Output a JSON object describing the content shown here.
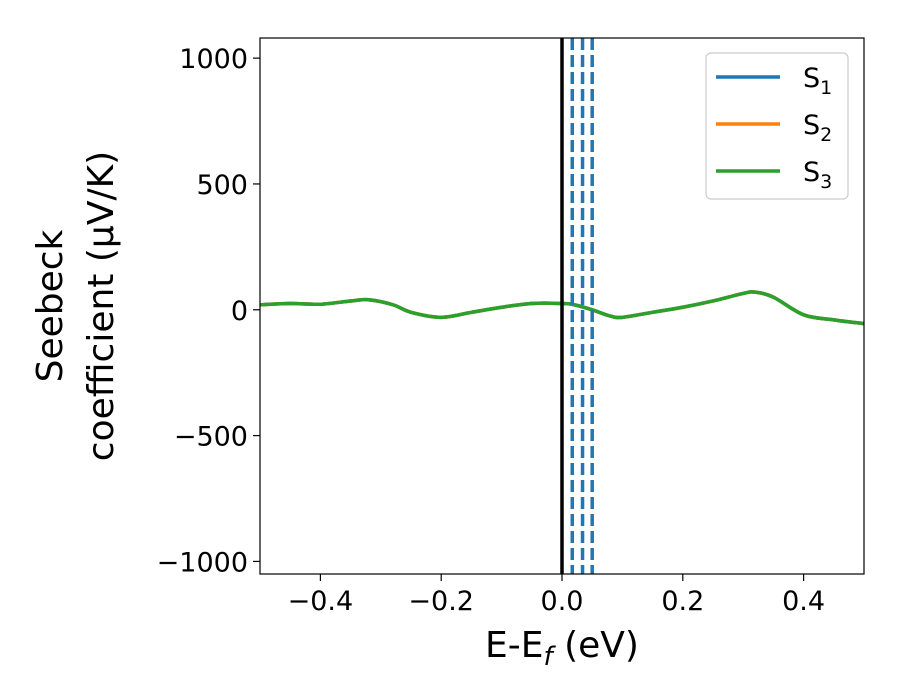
{
  "chart_data": {
    "type": "line",
    "xlabel": "E-E_f (eV)",
    "xlabel_parts": {
      "main": "E-E",
      "sub": "f",
      "rest": " (eV)"
    },
    "ylabel": [
      "Seebeck",
      "coefficient  (μV/K)"
    ],
    "xlim": [
      -0.5,
      0.5
    ],
    "ylim": [
      -1050,
      1080
    ],
    "x_ticks": [
      -0.4,
      -0.2,
      0.0,
      0.2,
      0.4
    ],
    "x_tick_labels": [
      "−0.4",
      "−0.2",
      "0.0",
      "0.2",
      "0.4"
    ],
    "y_ticks": [
      -1000,
      -500,
      0,
      500,
      1000
    ],
    "y_tick_labels": [
      "−1000",
      "−500",
      "0",
      "500",
      "1000"
    ],
    "grid": false,
    "legend_position": "top-right",
    "series": [
      {
        "name": "S1",
        "label_main": "S",
        "label_sub": "1",
        "color": "#1f77b4",
        "x": [
          -0.5,
          -0.45,
          -0.4,
          -0.35,
          -0.32,
          -0.28,
          -0.25,
          -0.2,
          -0.15,
          -0.1,
          -0.05,
          0.0,
          0.02,
          0.05,
          0.08,
          0.1,
          0.15,
          0.2,
          0.25,
          0.3,
          0.32,
          0.35,
          0.4,
          0.45,
          0.5
        ],
        "y": [
          20,
          25,
          22,
          35,
          40,
          20,
          -10,
          -30,
          -10,
          10,
          25,
          25,
          20,
          0,
          -25,
          -30,
          -10,
          10,
          35,
          65,
          70,
          50,
          -20,
          -40,
          -55
        ]
      },
      {
        "name": "S2",
        "label_main": "S",
        "label_sub": "2",
        "color": "#ff7f0e",
        "x": [
          -0.5,
          -0.45,
          -0.4,
          -0.35,
          -0.32,
          -0.28,
          -0.25,
          -0.2,
          -0.15,
          -0.1,
          -0.05,
          0.0,
          0.02,
          0.05,
          0.08,
          0.1,
          0.15,
          0.2,
          0.25,
          0.3,
          0.32,
          0.35,
          0.4,
          0.45,
          0.5
        ],
        "y": [
          20,
          25,
          22,
          35,
          40,
          20,
          -10,
          -30,
          -10,
          10,
          25,
          25,
          20,
          0,
          -25,
          -30,
          -10,
          10,
          35,
          65,
          70,
          50,
          -20,
          -40,
          -55
        ]
      },
      {
        "name": "S3",
        "label_main": "S",
        "label_sub": "3",
        "color": "#2ca02c",
        "x": [
          -0.5,
          -0.45,
          -0.4,
          -0.35,
          -0.32,
          -0.28,
          -0.25,
          -0.2,
          -0.15,
          -0.1,
          -0.05,
          0.0,
          0.02,
          0.05,
          0.08,
          0.1,
          0.15,
          0.2,
          0.25,
          0.3,
          0.32,
          0.35,
          0.4,
          0.45,
          0.5
        ],
        "y": [
          20,
          25,
          22,
          35,
          40,
          20,
          -10,
          -30,
          -10,
          10,
          25,
          25,
          20,
          0,
          -25,
          -30,
          -10,
          10,
          35,
          65,
          70,
          50,
          -20,
          -40,
          -55
        ]
      }
    ],
    "reference_lines": [
      {
        "x": 0.0,
        "color": "#000000",
        "style": "solid"
      },
      {
        "x": 0.017,
        "color": "#1f77b4",
        "style": "dashed"
      },
      {
        "x": 0.034,
        "color": "#1f77b4",
        "style": "dashed"
      },
      {
        "x": 0.05,
        "color": "#1f77b4",
        "style": "dashed"
      }
    ]
  }
}
